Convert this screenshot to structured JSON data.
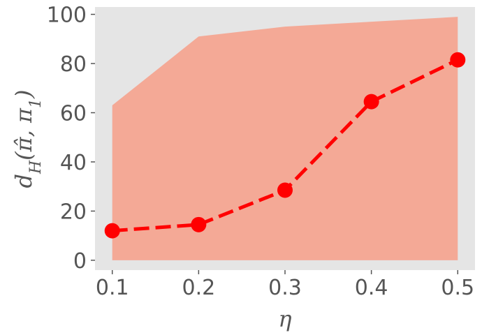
{
  "chart_data": {
    "type": "line",
    "title": "",
    "xlabel": "η",
    "ylabel": {
      "base": "d",
      "subscript": "H",
      "open": "(",
      "pi_hat": "π̂",
      "sep": ", ",
      "pi": "π",
      "pi_subscript": "1",
      "close": ")"
    },
    "x": [
      0.1,
      0.2,
      0.3,
      0.4,
      0.5
    ],
    "x_tick_labels": [
      "0.1",
      "0.2",
      "0.3",
      "0.4",
      "0.5"
    ],
    "y_ticks": [
      0,
      20,
      40,
      60,
      80,
      100
    ],
    "y_tick_labels": [
      "0",
      "20",
      "40",
      "60",
      "80",
      "100"
    ],
    "xlim": [
      0.08,
      0.52
    ],
    "ylim": [
      -4,
      103
    ],
    "series": [
      {
        "values": [
          12,
          14.5,
          28.5,
          64.5,
          81.5
        ],
        "color": "#ff0000",
        "line_style": "dashed",
        "marker": "circle"
      }
    ],
    "band": {
      "lower": [
        0,
        0,
        0,
        0,
        0
      ],
      "upper": [
        63,
        91,
        95,
        97,
        99
      ],
      "color": "#f4a996"
    },
    "grid": false,
    "legend": "none",
    "colors": {
      "plot_background": "#e5e5e5",
      "text": "#555555"
    }
  }
}
